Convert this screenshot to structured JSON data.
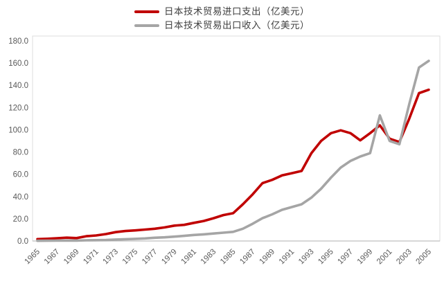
{
  "chart_data": {
    "type": "line",
    "title": "",
    "x": [
      1965,
      1966,
      1967,
      1968,
      1969,
      1970,
      1971,
      1972,
      1973,
      1974,
      1975,
      1976,
      1977,
      1978,
      1979,
      1980,
      1981,
      1982,
      1983,
      1984,
      1985,
      1986,
      1987,
      1988,
      1989,
      1990,
      1991,
      1992,
      1993,
      1994,
      1995,
      1996,
      1997,
      1998,
      1999,
      2000,
      2001,
      2002,
      2003,
      2004,
      2005
    ],
    "series": [
      {
        "name": "日本技术贸易进口支出（亿美元）",
        "color": "#C00000",
        "values": [
          1.7,
          2.0,
          2.5,
          3.0,
          2.6,
          4.3,
          5.0,
          6.2,
          8.0,
          9.0,
          9.5,
          10.3,
          11.0,
          12.2,
          13.8,
          14.5,
          16.3,
          18.0,
          20.5,
          23.3,
          25.0,
          33.0,
          42.0,
          52.0,
          55.0,
          59.0,
          61.0,
          63.0,
          79.0,
          90.0,
          97.0,
          99.5,
          97.0,
          90.5,
          97.0,
          104.0,
          92.0,
          89.0,
          110.0,
          133.0,
          136.0
        ]
      },
      {
        "name": "日本技术贸易出口收入（亿美元）",
        "color": "#A5A5A5",
        "values": [
          0.2,
          0.25,
          0.3,
          0.35,
          0.4,
          0.6,
          0.75,
          0.9,
          1.3,
          1.6,
          1.9,
          2.3,
          2.9,
          3.3,
          3.9,
          4.6,
          5.4,
          6.0,
          6.7,
          7.5,
          8.2,
          11.0,
          15.5,
          20.5,
          24.0,
          28.0,
          30.5,
          33.0,
          39.0,
          47.0,
          57.0,
          66.0,
          72.0,
          76.0,
          79.0,
          113.0,
          90.0,
          87.0,
          123.0,
          156.0,
          162.0
        ]
      }
    ],
    "ylim": [
      0,
      180
    ],
    "ytick_step": 20,
    "ytick_labels": [
      "0.0",
      "20.0",
      "40.0",
      "60.0",
      "80.0",
      "100.0",
      "120.0",
      "140.0",
      "160.0",
      "180.0"
    ],
    "xtick_labels": [
      "1965",
      "1967",
      "1969",
      "1971",
      "1973",
      "1975",
      "1977",
      "1979",
      "1981",
      "1983",
      "1985",
      "1987",
      "1989",
      "1991",
      "1993",
      "1995",
      "1997",
      "1999",
      "2001",
      "2003",
      "2005"
    ],
    "xtick_every": 2,
    "legend_position": "top",
    "grid": false,
    "axis_line_color": "#BFBFBF",
    "plot_border_color": "#DCDCDC",
    "label_color": "#595959"
  }
}
